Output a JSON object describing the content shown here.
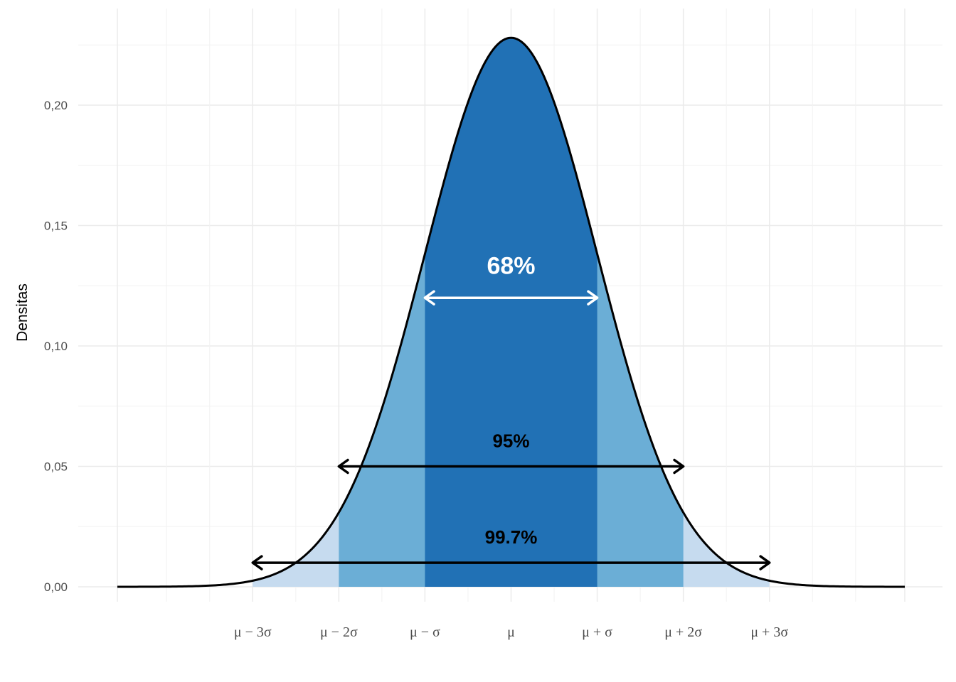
{
  "chart_data": {
    "type": "area",
    "title": "",
    "xlabel": "",
    "ylabel": "Densitas",
    "distribution": {
      "name": "normal",
      "mean": 0,
      "sd": 1.75
    },
    "xlim": [
      -8,
      8
    ],
    "ylim": [
      0,
      0.23
    ],
    "y_ticks": [
      {
        "value": 0.0,
        "label": "0,00"
      },
      {
        "value": 0.05,
        "label": "0,05"
      },
      {
        "value": 0.1,
        "label": "0,10"
      },
      {
        "value": 0.15,
        "label": "0,15"
      },
      {
        "value": 0.2,
        "label": "0,20"
      }
    ],
    "x_ticks": [
      {
        "k": -3,
        "label": "μ − 3σ"
      },
      {
        "k": -2,
        "label": "μ − 2σ"
      },
      {
        "k": -1,
        "label": "μ − σ"
      },
      {
        "k": 0,
        "label": "μ"
      },
      {
        "k": 1,
        "label": "μ + σ"
      },
      {
        "k": 2,
        "label": "μ + 2σ"
      },
      {
        "k": 3,
        "label": "μ + 3σ"
      }
    ],
    "bands": [
      {
        "name": "within 3 sd",
        "from_k": -3,
        "to_k": 3,
        "color": "#c6dbef"
      },
      {
        "name": "within 2 sd",
        "from_k": -2,
        "to_k": 2,
        "color": "#6baed6"
      },
      {
        "name": "within 1 sd",
        "from_k": -1,
        "to_k": 1,
        "color": "#2171b5"
      }
    ],
    "annotations": [
      {
        "label": "68%",
        "from_k": -1,
        "to_k": 1,
        "arrow_y": 0.12,
        "label_y": 0.13,
        "color": "#ffffff",
        "size": "large"
      },
      {
        "label": "95%",
        "from_k": -2,
        "to_k": 2,
        "arrow_y": 0.05,
        "label_y": 0.058,
        "color": "#000000",
        "size": "medium"
      },
      {
        "label": "99.7%",
        "from_k": -3,
        "to_k": 3,
        "arrow_y": 0.01,
        "label_y": 0.018,
        "color": "#000000",
        "size": "medium"
      }
    ],
    "curve_color": "#000000",
    "grid": true
  }
}
